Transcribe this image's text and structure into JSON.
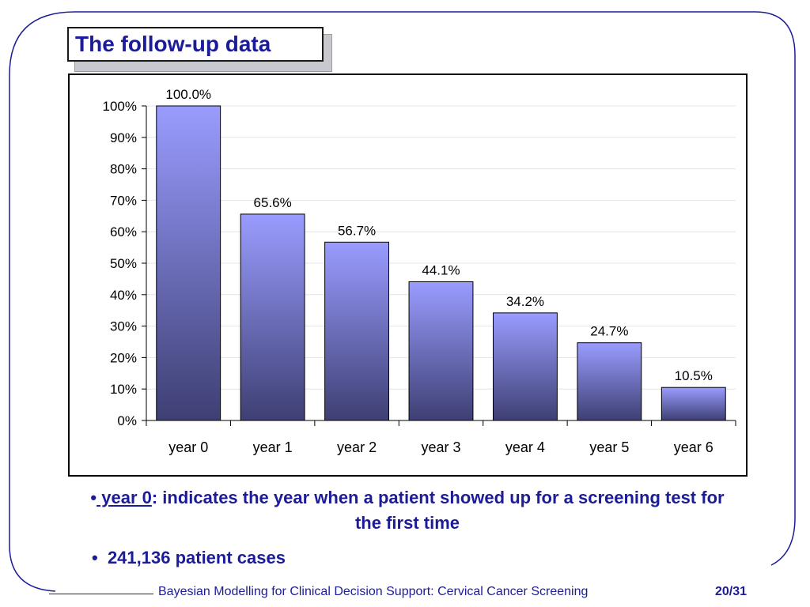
{
  "slide": {
    "title": "The follow-up data",
    "bullets": [
      {
        "marker": "•",
        "term": " year 0",
        "text": ": indicates the year when a patient showed up for a screening test for the first time"
      },
      {
        "marker": "•",
        "text": "241,136 patient cases"
      }
    ],
    "footer": {
      "text": "Bayesian Modelling for Clinical Decision Support: Cervical Cancer Screening",
      "page": "20/31"
    }
  },
  "colors": {
    "bar_top": "#9a9cff",
    "bar_bottom": "#3e3f73",
    "title_text": "#1c1c99",
    "frame": "#1c1c99"
  },
  "chart_data": {
    "type": "bar",
    "categories": [
      "year 0",
      "year 1",
      "year 2",
      "year 3",
      "year 4",
      "year 5",
      "year 6"
    ],
    "values": [
      100.0,
      65.6,
      56.7,
      44.1,
      34.2,
      24.7,
      10.5
    ],
    "data_labels": [
      "100.0%",
      "65.6%",
      "56.7%",
      "44.1%",
      "34.2%",
      "24.7%",
      "10.5%"
    ],
    "ylim": [
      0,
      100
    ],
    "yticks": [
      0,
      10,
      20,
      30,
      40,
      50,
      60,
      70,
      80,
      90,
      100
    ],
    "ytick_labels": [
      "0%",
      "10%",
      "20%",
      "30%",
      "40%",
      "50%",
      "60%",
      "70%",
      "80%",
      "90%",
      "100%"
    ],
    "grid": true,
    "legend": "none"
  }
}
